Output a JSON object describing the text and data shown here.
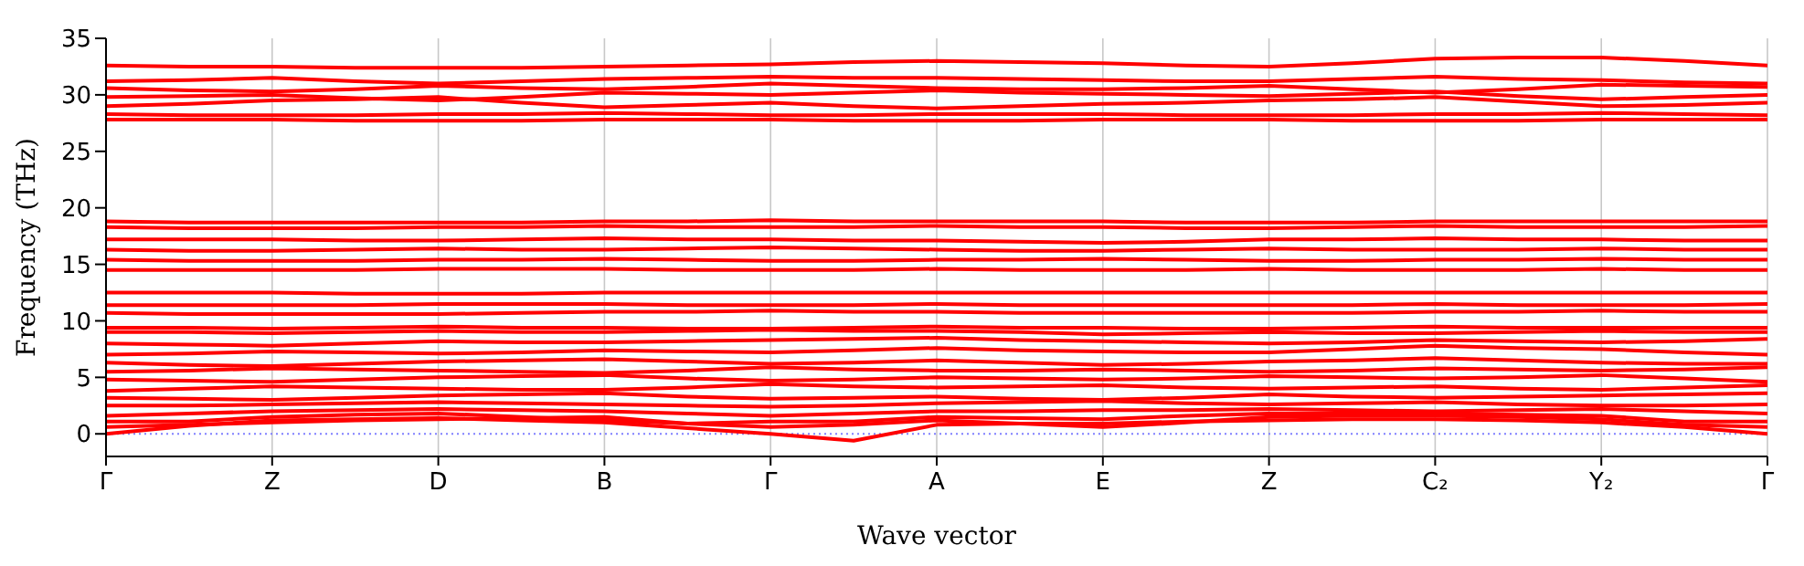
{
  "chart_data": {
    "type": "line",
    "xlabel": "Wave vector",
    "ylabel": "Frequency (THz)",
    "categories": [
      "Γ",
      null,
      "Z",
      null,
      "D",
      null,
      "B",
      null,
      "Γ",
      null,
      "A",
      null,
      "E",
      null,
      "Z",
      null,
      "C₂",
      null,
      "Y₂",
      null,
      "Γ"
    ],
    "ylim": [
      -2,
      35
    ],
    "yticks": [
      0,
      5,
      10,
      15,
      20,
      25,
      30,
      35
    ],
    "grid": "x",
    "marker": "none",
    "line_style": "solid",
    "ref_lines": [
      {
        "axis": "y",
        "value": 0,
        "color": "#8080ff",
        "line_style": "dotted"
      }
    ],
    "series": [
      {
        "color": "#ff0000",
        "values": [
          0,
          0.7,
          1.2,
          1.3,
          1.4,
          1.2,
          1.0,
          0.5,
          0,
          -0.6,
          0.8,
          0.9,
          0.9,
          1.1,
          1.2,
          1.3,
          1.3,
          1.2,
          1.0,
          0.6,
          0
        ]
      },
      {
        "color": "#ff0000",
        "values": [
          0.6,
          0.8,
          1.0,
          1.2,
          1.3,
          1.4,
          1.5,
          0.9,
          0.6,
          0.8,
          1.2,
          0.9,
          0.6,
          1.0,
          1.5,
          1.6,
          1.6,
          1.5,
          1.3,
          0.8,
          0.6
        ]
      },
      {
        "color": "#ff0000",
        "values": [
          1.1,
          1.1,
          1.5,
          1.7,
          1.8,
          1.5,
          1.2,
          0.9,
          1.1,
          1.1,
          1.5,
          1.4,
          1.3,
          1.6,
          1.8,
          1.8,
          1.8,
          1.7,
          1.6,
          1.1,
          1.1
        ]
      },
      {
        "color": "#ff0000",
        "values": [
          1.6,
          1.8,
          2.0,
          2.1,
          2.2,
          2.1,
          2.0,
          1.8,
          1.6,
          1.8,
          2.0,
          2.0,
          2.1,
          2.1,
          2.2,
          2.1,
          2.0,
          2.1,
          2.2,
          2.0,
          1.8
        ]
      },
      {
        "color": "#ff0000",
        "values": [
          2.5,
          2.5,
          2.6,
          2.7,
          2.8,
          2.7,
          2.6,
          2.5,
          2.4,
          2.5,
          2.7,
          2.8,
          2.9,
          2.7,
          2.6,
          2.7,
          2.8,
          2.6,
          2.5,
          2.5,
          2.6
        ]
      },
      {
        "color": "#ff0000",
        "values": [
          3.2,
          3.1,
          3.0,
          3.2,
          3.4,
          3.5,
          3.6,
          3.3,
          3.1,
          3.2,
          3.3,
          3.1,
          3.0,
          3.2,
          3.5,
          3.3,
          3.2,
          3.3,
          3.4,
          3.5,
          3.6
        ]
      },
      {
        "color": "#ff0000",
        "values": [
          3.8,
          4.0,
          4.2,
          4.1,
          4.0,
          3.9,
          3.9,
          4.1,
          4.4,
          4.2,
          4.1,
          4.2,
          4.3,
          4.1,
          4.0,
          4.1,
          4.2,
          4.0,
          3.9,
          4.1,
          4.3
        ]
      },
      {
        "color": "#ff0000",
        "values": [
          4.8,
          4.7,
          4.6,
          4.8,
          5.0,
          5.1,
          5.2,
          4.9,
          4.7,
          4.8,
          5.0,
          4.9,
          4.8,
          4.9,
          5.1,
          5.0,
          4.9,
          5.0,
          5.2,
          4.9,
          4.6
        ]
      },
      {
        "color": "#ff0000",
        "values": [
          5.5,
          5.6,
          5.8,
          5.7,
          5.6,
          5.5,
          5.4,
          5.6,
          5.9,
          5.7,
          5.6,
          5.6,
          5.7,
          5.6,
          5.5,
          5.6,
          5.8,
          5.7,
          5.6,
          5.7,
          5.9
        ]
      },
      {
        "color": "#ff0000",
        "values": [
          6.3,
          6.1,
          6.0,
          6.2,
          6.4,
          6.5,
          6.6,
          6.4,
          6.2,
          6.3,
          6.5,
          6.3,
          6.1,
          6.2,
          6.4,
          6.5,
          6.7,
          6.5,
          6.3,
          6.2,
          6.2
        ]
      },
      {
        "color": "#ff0000",
        "values": [
          7.0,
          7.1,
          7.3,
          7.2,
          7.1,
          7.2,
          7.4,
          7.3,
          7.2,
          7.4,
          7.6,
          7.4,
          7.3,
          7.2,
          7.2,
          7.5,
          7.8,
          7.6,
          7.5,
          7.2,
          7.0
        ]
      },
      {
        "color": "#ff0000",
        "values": [
          8.0,
          7.9,
          7.8,
          8.0,
          8.2,
          8.1,
          8.1,
          8.2,
          8.3,
          8.4,
          8.5,
          8.3,
          8.2,
          8.1,
          8.0,
          8.1,
          8.3,
          8.2,
          8.1,
          8.2,
          8.4
        ]
      },
      {
        "color": "#ff0000",
        "values": [
          9.0,
          9.0,
          8.9,
          9.0,
          9.1,
          9.0,
          9.0,
          9.1,
          9.2,
          9.1,
          9.1,
          9.0,
          8.8,
          8.9,
          9.0,
          8.9,
          8.9,
          9.0,
          9.1,
          9.0,
          9.0
        ]
      },
      {
        "color": "#ff0000",
        "values": [
          9.4,
          9.4,
          9.3,
          9.4,
          9.5,
          9.4,
          9.4,
          9.3,
          9.3,
          9.4,
          9.5,
          9.4,
          9.4,
          9.3,
          9.3,
          9.4,
          9.5,
          9.4,
          9.4,
          9.4,
          9.4
        ]
      },
      {
        "color": "#ff0000",
        "values": [
          10.7,
          10.6,
          10.6,
          10.6,
          10.6,
          10.7,
          10.8,
          10.8,
          10.9,
          10.8,
          10.8,
          10.7,
          10.7,
          10.7,
          10.7,
          10.7,
          10.8,
          10.8,
          10.9,
          10.8,
          10.8
        ]
      },
      {
        "color": "#ff0000",
        "values": [
          11.4,
          11.4,
          11.4,
          11.4,
          11.5,
          11.5,
          11.5,
          11.4,
          11.4,
          11.4,
          11.5,
          11.4,
          11.4,
          11.4,
          11.4,
          11.4,
          11.5,
          11.4,
          11.4,
          11.4,
          11.5
        ]
      },
      {
        "color": "#ff0000",
        "values": [
          12.5,
          12.5,
          12.5,
          12.4,
          12.4,
          12.4,
          12.5,
          12.5,
          12.5,
          12.5,
          12.5,
          12.5,
          12.5,
          12.5,
          12.5,
          12.5,
          12.5,
          12.5,
          12.5,
          12.5,
          12.5
        ]
      },
      {
        "color": "#ff0000",
        "values": [
          14.5,
          14.5,
          14.5,
          14.5,
          14.6,
          14.6,
          14.6,
          14.5,
          14.5,
          14.5,
          14.6,
          14.5,
          14.5,
          14.5,
          14.6,
          14.5,
          14.5,
          14.5,
          14.6,
          14.5,
          14.5
        ]
      },
      {
        "color": "#ff0000",
        "values": [
          15.4,
          15.3,
          15.3,
          15.3,
          15.4,
          15.4,
          15.5,
          15.4,
          15.3,
          15.3,
          15.4,
          15.4,
          15.5,
          15.4,
          15.3,
          15.3,
          15.4,
          15.4,
          15.5,
          15.4,
          15.4
        ]
      },
      {
        "color": "#ff0000",
        "values": [
          16.3,
          16.2,
          16.2,
          16.3,
          16.4,
          16.3,
          16.3,
          16.4,
          16.5,
          16.4,
          16.3,
          16.2,
          16.2,
          16.3,
          16.4,
          16.3,
          16.3,
          16.3,
          16.4,
          16.3,
          16.3
        ]
      },
      {
        "color": "#ff0000",
        "values": [
          17.2,
          17.2,
          17.2,
          17.1,
          17.1,
          17.2,
          17.3,
          17.2,
          17.2,
          17.1,
          17.1,
          17.0,
          16.9,
          17.0,
          17.2,
          17.2,
          17.3,
          17.2,
          17.2,
          17.1,
          17.1
        ]
      },
      {
        "color": "#ff0000",
        "values": [
          18.3,
          18.2,
          18.2,
          18.2,
          18.3,
          18.3,
          18.4,
          18.3,
          18.3,
          18.3,
          18.4,
          18.3,
          18.3,
          18.2,
          18.2,
          18.3,
          18.4,
          18.3,
          18.3,
          18.3,
          18.4
        ]
      },
      {
        "color": "#ff0000",
        "values": [
          18.8,
          18.7,
          18.7,
          18.7,
          18.7,
          18.7,
          18.8,
          18.8,
          18.9,
          18.8,
          18.8,
          18.8,
          18.8,
          18.7,
          18.7,
          18.7,
          18.8,
          18.8,
          18.8,
          18.8,
          18.8
        ]
      },
      {
        "color": "#ff0000",
        "values": [
          27.8,
          27.8,
          27.8,
          27.7,
          27.7,
          27.7,
          27.8,
          27.8,
          27.8,
          27.7,
          27.7,
          27.7,
          27.8,
          27.8,
          27.8,
          27.7,
          27.7,
          27.7,
          27.8,
          27.8,
          27.8
        ]
      },
      {
        "color": "#ff0000",
        "values": [
          28.3,
          28.2,
          28.2,
          28.2,
          28.3,
          28.3,
          28.4,
          28.3,
          28.2,
          28.2,
          28.3,
          28.3,
          28.3,
          28.2,
          28.2,
          28.2,
          28.3,
          28.3,
          28.4,
          28.3,
          28.2
        ]
      },
      {
        "color": "#ff0000",
        "values": [
          29.0,
          29.2,
          29.5,
          29.6,
          29.8,
          29.3,
          28.9,
          29.1,
          29.3,
          29.0,
          28.8,
          29.0,
          29.2,
          29.3,
          29.5,
          29.6,
          29.8,
          29.4,
          29.0,
          29.1,
          29.3
        ]
      },
      {
        "color": "#ff0000",
        "values": [
          29.8,
          29.9,
          30.0,
          29.7,
          29.5,
          29.8,
          30.2,
          30.1,
          30.0,
          30.2,
          30.4,
          30.2,
          30.1,
          30.0,
          29.9,
          30.1,
          30.3,
          29.9,
          29.6,
          29.8,
          30.0
        ]
      },
      {
        "color": "#ff0000",
        "values": [
          30.6,
          30.4,
          30.3,
          30.5,
          30.8,
          30.6,
          30.5,
          30.7,
          31.0,
          30.8,
          30.6,
          30.5,
          30.5,
          30.6,
          30.8,
          30.5,
          30.2,
          30.5,
          30.9,
          30.8,
          30.7
        ]
      },
      {
        "color": "#ff0000",
        "values": [
          31.2,
          31.3,
          31.5,
          31.2,
          31.0,
          31.2,
          31.4,
          31.5,
          31.6,
          31.5,
          31.5,
          31.4,
          31.3,
          31.2,
          31.2,
          31.4,
          31.6,
          31.4,
          31.3,
          31.1,
          31.0
        ]
      },
      {
        "color": "#ff0000",
        "values": [
          32.6,
          32.5,
          32.5,
          32.4,
          32.4,
          32.4,
          32.5,
          32.6,
          32.7,
          32.9,
          33.0,
          32.9,
          32.8,
          32.6,
          32.5,
          32.8,
          33.2,
          33.3,
          33.3,
          33.0,
          32.6
        ]
      }
    ]
  }
}
